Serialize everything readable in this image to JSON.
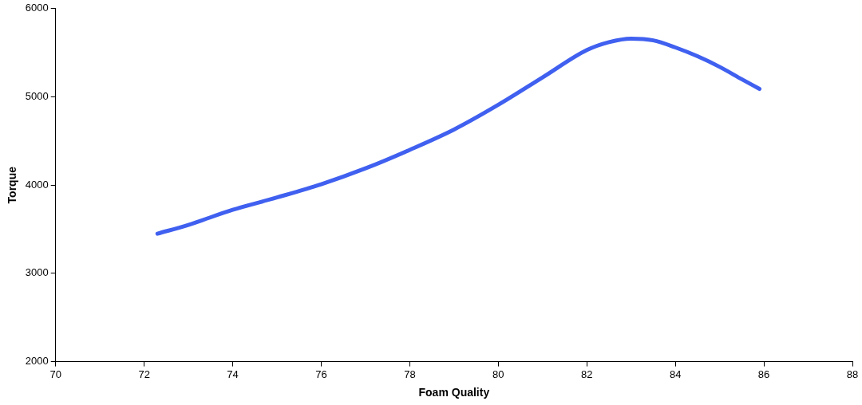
{
  "chart_data": {
    "type": "line",
    "xlabel": "Foam Quality",
    "ylabel": "Torque",
    "x": [
      72.3,
      73,
      74,
      75,
      76,
      77,
      78,
      79,
      80,
      81,
      82,
      82.5,
      83,
      83.5,
      84,
      84.5,
      85,
      85.5,
      85.9
    ],
    "series": [
      {
        "color": "#4060f0",
        "values": [
          3450,
          3550,
          3720,
          3860,
          4010,
          4190,
          4400,
          4630,
          4910,
          5220,
          5530,
          5620,
          5660,
          5640,
          5560,
          5460,
          5340,
          5200,
          5090
        ]
      }
    ],
    "xlim": [
      70,
      88
    ],
    "xticks": [
      70,
      72,
      74,
      76,
      78,
      80,
      82,
      84,
      86,
      88
    ],
    "ylim": [
      2000,
      6000
    ],
    "yticks": [
      2000,
      3000,
      4000,
      5000,
      6000
    ],
    "grid": false,
    "legend": false,
    "marker": "none",
    "line_style": "solid"
  }
}
